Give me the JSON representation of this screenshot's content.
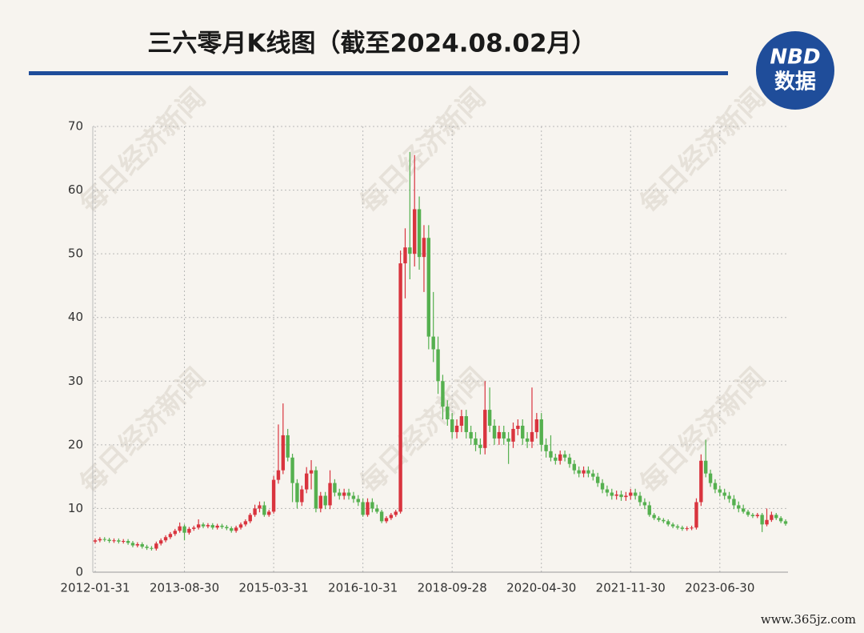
{
  "chart_data": {
    "type": "candlestick",
    "title": "三六零月K线图（截至2024.08.02月）",
    "logo": [
      "NBD",
      "数据"
    ],
    "watermark": "每日经济新闻",
    "source_mark": "www.365jz.com",
    "up_color": "#d9343e",
    "down_color": "#55b04f",
    "grid": true,
    "ylim": [
      0,
      70
    ],
    "yticks": [
      0,
      10,
      20,
      30,
      40,
      50,
      60,
      70
    ],
    "categories": [
      "2012-01-31",
      null,
      null,
      null,
      null,
      null,
      null,
      null,
      null,
      null,
      null,
      null,
      null,
      null,
      null,
      null,
      null,
      null,
      null,
      "2013-08-30",
      null,
      null,
      null,
      null,
      null,
      null,
      null,
      null,
      null,
      null,
      null,
      null,
      null,
      null,
      null,
      null,
      null,
      null,
      "2015-03-31",
      null,
      null,
      null,
      null,
      null,
      null,
      null,
      null,
      null,
      null,
      null,
      null,
      null,
      null,
      null,
      null,
      null,
      null,
      "2016-10-31",
      null,
      null,
      null,
      null,
      null,
      null,
      null,
      null,
      null,
      null,
      null,
      null,
      null,
      null,
      null,
      null,
      null,
      null,
      "2018-09-28",
      null,
      null,
      null,
      null,
      null,
      null,
      null,
      null,
      null,
      null,
      null,
      null,
      null,
      null,
      null,
      null,
      null,
      null,
      "2020-04-30",
      null,
      null,
      null,
      null,
      null,
      null,
      null,
      null,
      null,
      null,
      null,
      null,
      null,
      null,
      null,
      null,
      null,
      null,
      "2021-11-30",
      null,
      null,
      null,
      null,
      null,
      null,
      null,
      null,
      null,
      null,
      null,
      null,
      null,
      null,
      null,
      null,
      null,
      null,
      "2023-06-30",
      null,
      null,
      null,
      null,
      null,
      null,
      null,
      null,
      null,
      null,
      null,
      null,
      null,
      null
    ],
    "open": [
      4.8,
      5.0,
      5.2,
      5.1,
      4.9,
      5.0,
      4.8,
      4.9,
      4.6,
      4.2,
      4.4,
      4.0,
      3.8,
      3.7,
      4.5,
      5.0,
      5.5,
      6.0,
      6.5,
      7.2,
      6.2,
      6.8,
      7.0,
      7.5,
      7.2,
      7.4,
      7.0,
      7.3,
      7.1,
      6.9,
      6.5,
      7.0,
      7.5,
      8.0,
      9.0,
      10.0,
      10.5,
      9.0,
      9.5,
      14.5,
      16.0,
      21.5,
      18.0,
      14.0,
      11.0,
      13.0,
      15.5,
      16.0,
      10.0,
      12.0,
      10.5,
      14.0,
      12.5,
      12.0,
      12.5,
      12.0,
      11.5,
      11.0,
      9.0,
      11.0,
      10.0,
      9.5,
      8.0,
      8.5,
      9.0,
      9.5,
      48.5,
      51,
      50,
      57,
      49.5,
      52.5,
      37,
      35,
      30,
      26,
      24,
      22,
      23,
      24.5,
      22,
      21,
      20,
      19.5,
      25.5,
      23,
      21,
      22,
      21,
      20.5,
      22.5,
      23,
      21,
      20.5,
      22,
      24,
      20,
      19,
      18,
      17.5,
      18.5,
      18,
      17,
      16,
      15.5,
      16,
      15.5,
      15,
      14,
      13,
      12.5,
      12,
      12.2,
      11.8,
      12,
      12.5,
      12,
      11,
      10.5,
      9,
      8.5,
      8.2,
      8.0,
      7.5,
      7.2,
      7.0,
      6.8,
      6.9,
      7.0,
      11.0,
      17.5,
      15.5,
      14,
      13,
      12.5,
      12,
      11.5,
      10.5,
      10,
      9.5,
      9,
      8.8,
      9,
      7.5,
      8.2,
      9,
      8.5,
      8
    ],
    "high": [
      5.3,
      5.5,
      5.5,
      5.4,
      5.3,
      5.3,
      5.2,
      5.2,
      4.9,
      4.7,
      4.7,
      4.3,
      4.1,
      4.8,
      5.3,
      5.8,
      6.3,
      6.8,
      7.8,
      7.5,
      7.1,
      7.3,
      8.3,
      7.8,
      7.7,
      7.7,
      7.6,
      7.6,
      7.4,
      7.2,
      7.3,
      7.8,
      8.3,
      9.3,
      10.6,
      11.1,
      11.1,
      9.8,
      15.1,
      23.2,
      26.5,
      22.5,
      18.6,
      14.6,
      13.6,
      16.5,
      17.6,
      16.6,
      12.6,
      12.6,
      16.0,
      14.6,
      13.1,
      13.1,
      13.1,
      12.6,
      12.1,
      11.6,
      11.6,
      11.6,
      10.6,
      9.8,
      8.8,
      9.3,
      9.8,
      50.5,
      54,
      66,
      65.5,
      59,
      54.5,
      54.5,
      44,
      37,
      31,
      27,
      25,
      24,
      25.5,
      25.5,
      23,
      22,
      21,
      30,
      29,
      24,
      23,
      23,
      22,
      23.5,
      24,
      24,
      22,
      29,
      25,
      25,
      21,
      21.5,
      18.6,
      19.1,
      19.1,
      18.6,
      17.6,
      16.6,
      16.6,
      16.6,
      16.1,
      15.6,
      14.6,
      13.6,
      13.1,
      12.8,
      12.8,
      12.6,
      13.1,
      13.1,
      12.6,
      11.6,
      11.1,
      9.3,
      8.8,
      8.5,
      8.3,
      7.8,
      7.5,
      7.3,
      7.2,
      7.3,
      11.6,
      18.5,
      20.8,
      16.1,
      14.6,
      13.6,
      13.1,
      12.6,
      12.1,
      11.1,
      10.6,
      9.8,
      9.3,
      9.3,
      9.3,
      10.0,
      9.5,
      9.3,
      8.8,
      8.3
    ],
    "low": [
      4.5,
      4.7,
      4.8,
      4.6,
      4.6,
      4.5,
      4.5,
      4.3,
      3.9,
      3.9,
      3.7,
      3.5,
      3.4,
      3.4,
      4.2,
      4.7,
      5.2,
      5.7,
      6.2,
      5.0,
      5.9,
      6.5,
      6.7,
      6.9,
      6.9,
      6.7,
      6.7,
      6.8,
      6.6,
      6.2,
      6.2,
      6.7,
      7.2,
      7.7,
      8.7,
      9.4,
      8.7,
      8.7,
      9.2,
      13.9,
      15.4,
      17.4,
      11.0,
      10.0,
      10.4,
      12.4,
      13.0,
      9.4,
      9.4,
      9.9,
      9.9,
      11.9,
      11.4,
      11.4,
      11.4,
      10.9,
      10.4,
      8.7,
      8.7,
      9.4,
      9.2,
      7.7,
      7.7,
      8.2,
      8.7,
      9.2,
      43,
      46,
      48,
      47.5,
      44,
      35,
      33,
      28,
      24,
      23,
      21,
      21,
      22,
      21,
      20,
      19,
      18.5,
      18.5,
      22,
      20,
      20,
      20,
      17,
      19.5,
      21.5,
      20,
      19.5,
      19.5,
      21,
      19,
      18,
      17.4,
      16.9,
      16.9,
      17.4,
      16.4,
      15.4,
      14.9,
      14.9,
      14.9,
      14.4,
      13.4,
      12.4,
      11.9,
      11.4,
      11.4,
      11.2,
      11.2,
      11.4,
      11.4,
      10.4,
      9.9,
      8.7,
      8.2,
      7.9,
      7.7,
      7.2,
      6.9,
      6.7,
      6.5,
      6.5,
      6.6,
      6.7,
      10.4,
      14.9,
      13.4,
      12.4,
      11.9,
      11.4,
      10.9,
      9.9,
      9.4,
      9.2,
      8.7,
      8.5,
      8.5,
      6.3,
      7.2,
      7.9,
      8.2,
      7.7,
      7.3
    ],
    "close": [
      5.0,
      5.2,
      5.1,
      4.9,
      5.0,
      4.8,
      4.9,
      4.6,
      4.2,
      4.4,
      4.0,
      3.8,
      3.7,
      4.5,
      5.0,
      5.5,
      6.0,
      6.5,
      7.2,
      6.2,
      6.8,
      7.0,
      7.5,
      7.2,
      7.4,
      7.0,
      7.3,
      7.1,
      6.9,
      6.5,
      7.0,
      7.5,
      8.0,
      9.0,
      10.0,
      10.5,
      9.0,
      9.5,
      14.5,
      16.0,
      21.5,
      18.0,
      14.0,
      11.0,
      13.0,
      15.5,
      16.0,
      10.0,
      12.0,
      10.5,
      14.0,
      12.5,
      12.0,
      12.5,
      12.0,
      11.5,
      11.0,
      9.0,
      11.0,
      10.0,
      9.5,
      8.0,
      8.5,
      9.0,
      9.5,
      48.5,
      51,
      50,
      57,
      49.5,
      52.5,
      37,
      35,
      30,
      26,
      24,
      22,
      23,
      24.5,
      22,
      21,
      20,
      19.5,
      25.5,
      23,
      21,
      22,
      21,
      20.5,
      22.5,
      23,
      21,
      20.5,
      22,
      24,
      20,
      19,
      18,
      17.5,
      18.5,
      18,
      17,
      16,
      15.5,
      16,
      15.5,
      15,
      14,
      13,
      12.5,
      12,
      12.2,
      11.8,
      12,
      12.5,
      12,
      11,
      10.5,
      9,
      8.5,
      8.2,
      8.0,
      7.5,
      7.2,
      7.0,
      6.8,
      6.9,
      7.0,
      11.0,
      17.5,
      15.5,
      14,
      13,
      12.5,
      12,
      11.5,
      10.5,
      10,
      9.5,
      9,
      8.8,
      9,
      7.5,
      8.2,
      9,
      8.5,
      8,
      7.6
    ]
  }
}
